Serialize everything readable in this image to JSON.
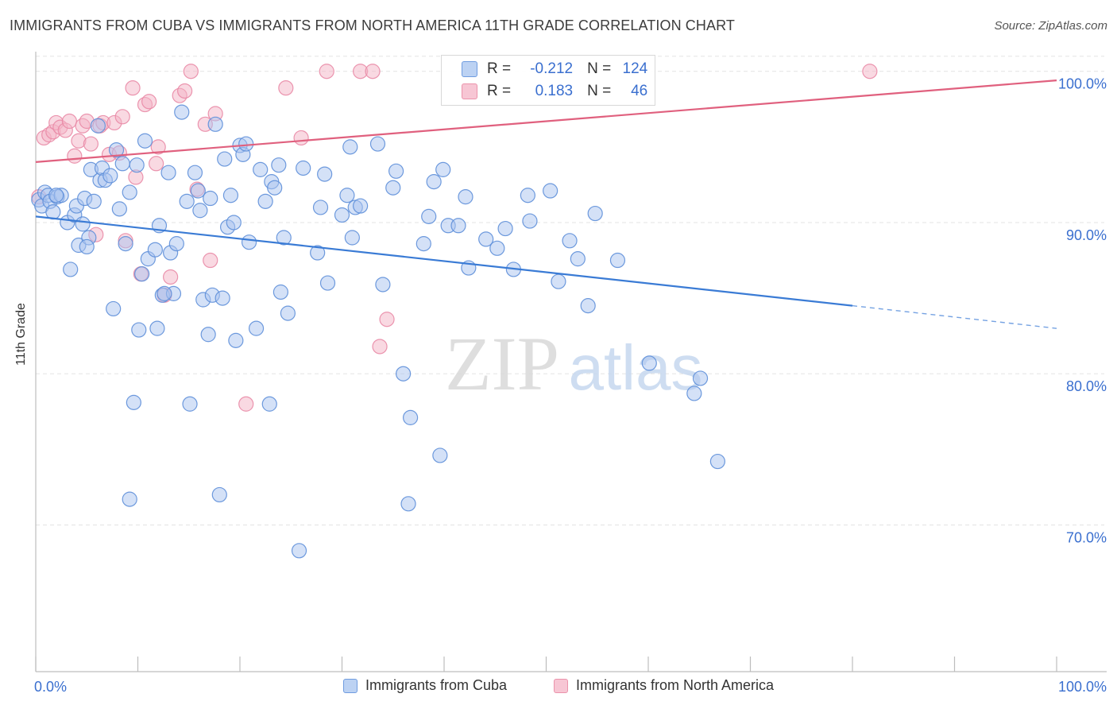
{
  "title": "IMMIGRANTS FROM CUBA VS IMMIGRANTS FROM NORTH AMERICA 11TH GRADE CORRELATION CHART",
  "source": "Source: ZipAtlas.com",
  "watermark": {
    "zip": "ZIP",
    "atlas": "atlas"
  },
  "colors": {
    "blue": "#3a7bd5",
    "blue_fill": "#a9c4ef",
    "pink": "#e0607e",
    "pink_fill": "#f4b4c6",
    "axis_text": "#3a6fcf"
  },
  "stats": {
    "r_label": "R =",
    "n_label": "N =",
    "rows": [
      {
        "r": "-0.212",
        "n": "124"
      },
      {
        "r": "0.183",
        "n": "46"
      }
    ]
  },
  "legend": {
    "series1": "Immigrants from Cuba",
    "series2": "Immigrants from North America"
  },
  "chart_data": {
    "type": "scatter",
    "title": "IMMIGRANTS FROM CUBA VS IMMIGRANTS FROM NORTH AMERICA 11TH GRADE CORRELATION CHART",
    "xlabel": "",
    "ylabel": "11th Grade",
    "xlim": [
      0,
      100
    ],
    "ylim": [
      60.3,
      101.3
    ],
    "x_tick_labels": [
      "0.0%",
      "100.0%"
    ],
    "y_ticks": [
      70,
      80,
      90,
      100
    ],
    "y_tick_labels": [
      "70.0%",
      "80.0%",
      "90.0%",
      "100.0%"
    ],
    "grid": true,
    "legend_position": "bottom",
    "series": [
      {
        "name": "Immigrants from Cuba",
        "points": [
          [
            0.3,
            91.5
          ],
          [
            0.6,
            91.1
          ],
          [
            0.9,
            92.0
          ],
          [
            1.2,
            91.8
          ],
          [
            1.4,
            91.4
          ],
          [
            1.7,
            90.7
          ],
          [
            2.1,
            91.7
          ],
          [
            2.5,
            91.8
          ],
          [
            3.1,
            90.0
          ],
          [
            3.4,
            86.9
          ],
          [
            3.8,
            90.5
          ],
          [
            4.0,
            91.1
          ],
          [
            4.2,
            88.5
          ],
          [
            4.6,
            89.9
          ],
          [
            4.8,
            91.6
          ],
          [
            5.2,
            89.0
          ],
          [
            5.4,
            93.5
          ],
          [
            5.7,
            91.4
          ],
          [
            6.1,
            96.4
          ],
          [
            6.3,
            92.8
          ],
          [
            6.5,
            93.6
          ],
          [
            6.8,
            92.8
          ],
          [
            7.3,
            93.1
          ],
          [
            7.6,
            84.3
          ],
          [
            7.9,
            94.8
          ],
          [
            8.2,
            90.9
          ],
          [
            8.5,
            93.9
          ],
          [
            8.8,
            88.6
          ],
          [
            9.2,
            92.0
          ],
          [
            9.6,
            78.1
          ],
          [
            9.9,
            93.8
          ],
          [
            10.1,
            82.9
          ],
          [
            10.4,
            86.6
          ],
          [
            10.7,
            95.4
          ],
          [
            11.0,
            87.6
          ],
          [
            11.7,
            88.2
          ],
          [
            11.9,
            83.0
          ],
          [
            12.1,
            89.8
          ],
          [
            12.4,
            85.2
          ],
          [
            13.0,
            93.3
          ],
          [
            13.2,
            88.0
          ],
          [
            13.5,
            85.3
          ],
          [
            13.8,
            88.6
          ],
          [
            14.3,
            97.3
          ],
          [
            14.8,
            91.4
          ],
          [
            15.1,
            78.0
          ],
          [
            15.6,
            93.3
          ],
          [
            15.9,
            92.1
          ],
          [
            16.1,
            90.8
          ],
          [
            16.4,
            84.9
          ],
          [
            16.9,
            82.6
          ],
          [
            17.1,
            91.6
          ],
          [
            17.3,
            85.2
          ],
          [
            17.6,
            96.5
          ],
          [
            18.3,
            85.0
          ],
          [
            18.5,
            94.2
          ],
          [
            18.8,
            89.7
          ],
          [
            19.1,
            91.8
          ],
          [
            19.4,
            90.0
          ],
          [
            19.6,
            82.2
          ],
          [
            20.0,
            95.1
          ],
          [
            20.3,
            94.5
          ],
          [
            20.6,
            95.2
          ],
          [
            20.9,
            88.7
          ],
          [
            21.6,
            83.0
          ],
          [
            22.0,
            93.5
          ],
          [
            22.5,
            91.4
          ],
          [
            22.9,
            78.0
          ],
          [
            23.1,
            92.7
          ],
          [
            23.4,
            92.3
          ],
          [
            23.8,
            93.8
          ],
          [
            24.0,
            85.4
          ],
          [
            24.3,
            89.0
          ],
          [
            24.7,
            84.0
          ],
          [
            25.8,
            68.3
          ],
          [
            26.2,
            93.6
          ],
          [
            27.6,
            88.0
          ],
          [
            27.9,
            91.0
          ],
          [
            28.3,
            93.2
          ],
          [
            28.6,
            86.0
          ],
          [
            30.0,
            90.5
          ],
          [
            30.5,
            91.8
          ],
          [
            30.8,
            95.0
          ],
          [
            31.0,
            89.0
          ],
          [
            31.3,
            91.0
          ],
          [
            31.8,
            91.1
          ],
          [
            33.5,
            95.2
          ],
          [
            34.0,
            85.9
          ],
          [
            35.0,
            92.3
          ],
          [
            35.3,
            93.4
          ],
          [
            36.0,
            80.0
          ],
          [
            36.5,
            71.4
          ],
          [
            36.7,
            77.1
          ],
          [
            38.0,
            88.6
          ],
          [
            38.5,
            90.4
          ],
          [
            39.0,
            92.7
          ],
          [
            39.6,
            74.6
          ],
          [
            39.9,
            93.5
          ],
          [
            40.4,
            89.8
          ],
          [
            41.4,
            89.8
          ],
          [
            42.1,
            91.7
          ],
          [
            42.4,
            87.0
          ],
          [
            44.1,
            88.9
          ],
          [
            45.2,
            88.3
          ],
          [
            46.0,
            89.6
          ],
          [
            46.8,
            86.9
          ],
          [
            48.2,
            91.8
          ],
          [
            48.4,
            90.1
          ],
          [
            50.4,
            92.1
          ],
          [
            51.2,
            86.1
          ],
          [
            52.3,
            88.8
          ],
          [
            53.1,
            87.6
          ],
          [
            54.1,
            84.5
          ],
          [
            54.8,
            90.6
          ],
          [
            57.0,
            87.5
          ],
          [
            60.1,
            80.7
          ],
          [
            64.5,
            78.7
          ],
          [
            65.1,
            79.7
          ],
          [
            66.8,
            74.2
          ],
          [
            9.2,
            71.7
          ],
          [
            18.0,
            72.0
          ],
          [
            5.0,
            88.4
          ],
          [
            2.0,
            91.8
          ],
          [
            12.6,
            85.3
          ]
        ]
      },
      {
        "name": "Immigrants from North America",
        "points": [
          [
            0.3,
            91.7
          ],
          [
            0.8,
            95.6
          ],
          [
            1.3,
            95.8
          ],
          [
            1.7,
            96.0
          ],
          [
            2.0,
            96.6
          ],
          [
            2.4,
            96.3
          ],
          [
            2.9,
            96.1
          ],
          [
            3.3,
            96.7
          ],
          [
            3.8,
            94.4
          ],
          [
            4.2,
            95.4
          ],
          [
            4.6,
            96.4
          ],
          [
            5.0,
            96.7
          ],
          [
            5.4,
            95.2
          ],
          [
            5.9,
            89.2
          ],
          [
            6.3,
            96.4
          ],
          [
            6.6,
            96.6
          ],
          [
            7.2,
            94.5
          ],
          [
            7.7,
            96.6
          ],
          [
            8.2,
            94.6
          ],
          [
            8.5,
            97.0
          ],
          [
            8.8,
            88.8
          ],
          [
            9.5,
            98.9
          ],
          [
            9.8,
            93.0
          ],
          [
            10.3,
            86.6
          ],
          [
            10.7,
            97.8
          ],
          [
            11.1,
            98.0
          ],
          [
            12.0,
            95.0
          ],
          [
            12.6,
            85.2
          ],
          [
            13.2,
            86.4
          ],
          [
            14.1,
            98.4
          ],
          [
            14.6,
            98.7
          ],
          [
            15.2,
            100.0
          ],
          [
            15.8,
            92.2
          ],
          [
            16.6,
            96.5
          ],
          [
            17.1,
            87.5
          ],
          [
            17.6,
            97.2
          ],
          [
            20.6,
            78.0
          ],
          [
            24.5,
            98.9
          ],
          [
            26.0,
            95.6
          ],
          [
            28.5,
            100.0
          ],
          [
            31.8,
            100.0
          ],
          [
            33.0,
            100.0
          ],
          [
            33.7,
            81.8
          ],
          [
            34.4,
            83.6
          ],
          [
            81.7,
            100.0
          ],
          [
            11.8,
            93.9
          ]
        ]
      }
    ],
    "trendlines": [
      {
        "series": "Immigrants from Cuba",
        "x": [
          0,
          80,
          100
        ],
        "y": [
          90.4,
          84.5,
          83.0
        ],
        "dashed_from_x": 80
      },
      {
        "series": "Immigrants from North America",
        "x": [
          0,
          100
        ],
        "y": [
          94.0,
          99.4
        ]
      }
    ]
  }
}
